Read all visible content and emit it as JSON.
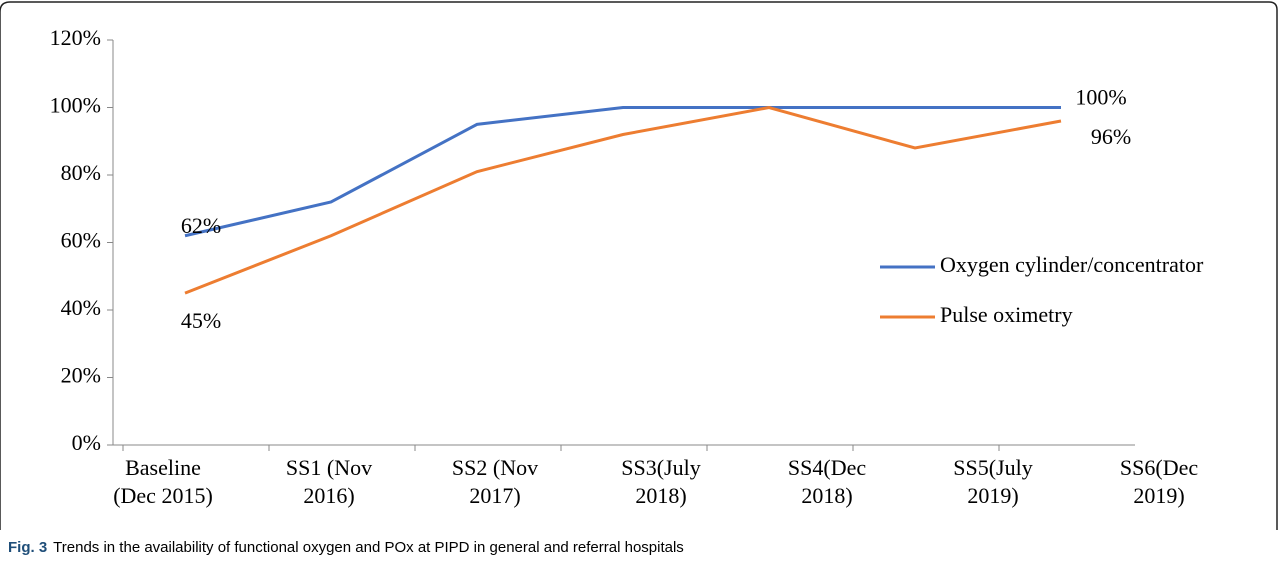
{
  "chart_data": {
    "type": "line",
    "categories": [
      [
        "Baseline",
        "(Dec 2015)"
      ],
      [
        "SS1 (Nov",
        "2016)"
      ],
      [
        "SS2 (Nov",
        "2017)"
      ],
      [
        "SS3(July",
        "2018)"
      ],
      [
        "SS4(Dec",
        "2018)"
      ],
      [
        "SS5(July",
        "2019)"
      ],
      [
        "SS6(Dec",
        "2019)"
      ]
    ],
    "series": [
      {
        "name": "Oxygen cylinder/concentrator",
        "color": "#4472c4",
        "values": [
          62,
          72,
          95,
          100,
          100,
          100,
          100
        ],
        "value_labels": [
          "62%",
          null,
          null,
          null,
          null,
          null,
          "100%"
        ]
      },
      {
        "name": "Pulse oximetry",
        "color": "#ed7d31",
        "values": [
          45,
          62,
          81,
          92,
          100,
          88,
          96
        ],
        "value_labels": [
          "45%",
          null,
          null,
          null,
          null,
          null,
          "96%"
        ]
      }
    ],
    "ylim": [
      0,
      120
    ],
    "yticks": [
      {
        "value": 0,
        "label": "0%"
      },
      {
        "value": 20,
        "label": "20%"
      },
      {
        "value": 40,
        "label": "40%"
      },
      {
        "value": 60,
        "label": "60%"
      },
      {
        "value": 80,
        "label": "80%"
      },
      {
        "value": 100,
        "label": "100%"
      },
      {
        "value": 120,
        "label": "120%"
      }
    ],
    "legend": "right",
    "caption": {
      "label": "Fig. 3",
      "text": "Trends in the availability of functional oxygen and POx at PIPD in general and referral hospitals"
    }
  }
}
